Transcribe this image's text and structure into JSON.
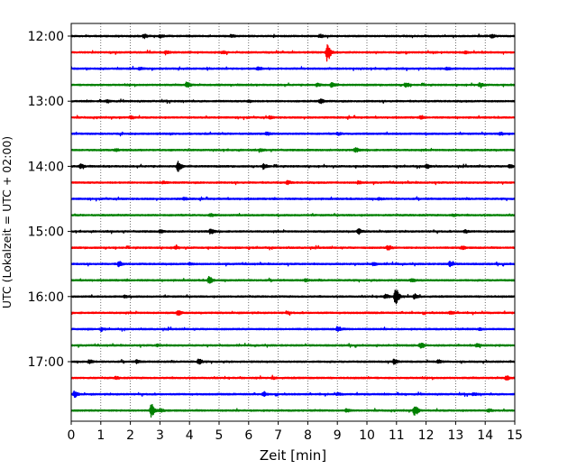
{
  "chart_data": {
    "type": "line",
    "xlabel": "Zeit  [min]",
    "ylabel": "UTC (Lokalzeit = UTC + 02:00)",
    "xlim": [
      0,
      15
    ],
    "x_ticks": [
      0,
      1,
      2,
      3,
      4,
      5,
      6,
      7,
      8,
      9,
      10,
      11,
      12,
      13,
      14,
      15
    ],
    "y_tick_labels": [
      "12:00",
      "13:00",
      "14:00",
      "15:00",
      "16:00",
      "17:00"
    ],
    "row_interval_minutes": 15,
    "vertical_grid": true,
    "trace_colors": [
      "#000000",
      "#ff0000",
      "#0000ff",
      "#008000"
    ],
    "rows": [
      {
        "start": "12:00",
        "color": "#000000",
        "events": [
          {
            "x": 2.45,
            "amp": 0.45
          },
          {
            "x": 3.0,
            "amp": 0.3
          },
          {
            "x": 5.4,
            "amp": 0.25
          },
          {
            "x": 8.4,
            "amp": 0.3
          },
          {
            "x": 14.2,
            "amp": 0.3
          }
        ]
      },
      {
        "start": "12:15",
        "color": "#ff0000",
        "events": [
          {
            "x": 8.65,
            "amp": 1.9
          },
          {
            "x": 5.1,
            "amp": 0.25
          },
          {
            "x": 3.2,
            "amp": 0.2
          },
          {
            "x": 13.3,
            "amp": 0.2
          }
        ]
      },
      {
        "start": "12:30",
        "color": "#0000ff",
        "events": [
          {
            "x": 6.3,
            "amp": 0.3
          },
          {
            "x": 2.3,
            "amp": 0.2
          },
          {
            "x": 12.7,
            "amp": 0.2
          }
        ]
      },
      {
        "start": "12:45",
        "color": "#008000",
        "events": [
          {
            "x": 3.9,
            "amp": 0.55
          },
          {
            "x": 8.8,
            "amp": 0.5
          },
          {
            "x": 11.3,
            "amp": 0.45
          },
          {
            "x": 13.8,
            "amp": 0.4
          },
          {
            "x": 8.3,
            "amp": 0.3
          }
        ]
      },
      {
        "start": "13:00",
        "color": "#000000",
        "events": [
          {
            "x": 8.4,
            "amp": 0.45
          },
          {
            "x": 6.0,
            "amp": 0.2
          },
          {
            "x": 1.2,
            "amp": 0.2
          }
        ]
      },
      {
        "start": "13:15",
        "color": "#ff0000",
        "events": [
          {
            "x": 2.0,
            "amp": 0.3
          },
          {
            "x": 6.7,
            "amp": 0.2
          },
          {
            "x": 11.8,
            "amp": 0.2
          }
        ]
      },
      {
        "start": "13:30",
        "color": "#0000ff",
        "events": [
          {
            "x": 6.6,
            "amp": 0.25
          },
          {
            "x": 9.0,
            "amp": 0.25
          },
          {
            "x": 14.5,
            "amp": 0.25
          }
        ]
      },
      {
        "start": "13:45",
        "color": "#008000",
        "events": [
          {
            "x": 9.6,
            "amp": 0.4
          },
          {
            "x": 1.5,
            "amp": 0.2
          },
          {
            "x": 6.4,
            "amp": 0.25
          }
        ]
      },
      {
        "start": "14:00",
        "color": "#000000",
        "events": [
          {
            "x": 3.6,
            "amp": 1.0
          },
          {
            "x": 0.3,
            "amp": 0.45
          },
          {
            "x": 6.5,
            "amp": 0.5
          },
          {
            "x": 12.0,
            "amp": 0.4
          },
          {
            "x": 14.8,
            "amp": 0.35
          }
        ]
      },
      {
        "start": "14:15",
        "color": "#ff0000",
        "events": [
          {
            "x": 7.3,
            "amp": 0.3
          },
          {
            "x": 9.7,
            "amp": 0.3
          },
          {
            "x": 3.1,
            "amp": 0.2
          }
        ]
      },
      {
        "start": "14:30",
        "color": "#0000ff",
        "events": [
          {
            "x": 3.8,
            "amp": 0.2
          },
          {
            "x": 10.4,
            "amp": 0.2
          }
        ]
      },
      {
        "start": "14:45",
        "color": "#008000",
        "events": [
          {
            "x": 4.7,
            "amp": 0.25
          },
          {
            "x": 12.9,
            "amp": 0.2
          }
        ]
      },
      {
        "start": "15:00",
        "color": "#000000",
        "events": [
          {
            "x": 4.7,
            "amp": 0.45
          },
          {
            "x": 9.7,
            "amp": 0.5
          },
          {
            "x": 13.3,
            "amp": 0.3
          },
          {
            "x": 3.0,
            "amp": 0.25
          }
        ]
      },
      {
        "start": "15:15",
        "color": "#ff0000",
        "events": [
          {
            "x": 10.7,
            "amp": 0.45
          },
          {
            "x": 3.5,
            "amp": 0.25
          },
          {
            "x": 13.2,
            "amp": 0.3
          }
        ]
      },
      {
        "start": "15:30",
        "color": "#0000ff",
        "events": [
          {
            "x": 1.6,
            "amp": 0.5
          },
          {
            "x": 12.8,
            "amp": 0.55
          },
          {
            "x": 4.0,
            "amp": 0.2
          },
          {
            "x": 10.2,
            "amp": 0.25
          }
        ]
      },
      {
        "start": "15:45",
        "color": "#008000",
        "events": [
          {
            "x": 4.65,
            "amp": 0.7
          },
          {
            "x": 11.5,
            "amp": 0.3
          },
          {
            "x": 7.9,
            "amp": 0.2
          }
        ]
      },
      {
        "start": "16:00",
        "color": "#000000",
        "events": [
          {
            "x": 10.95,
            "amp": 2.0
          },
          {
            "x": 11.6,
            "amp": 0.5
          },
          {
            "x": 10.6,
            "amp": 0.4
          },
          {
            "x": 1.8,
            "amp": 0.2
          }
        ]
      },
      {
        "start": "16:15",
        "color": "#ff0000",
        "events": [
          {
            "x": 3.6,
            "amp": 0.45
          },
          {
            "x": 12.8,
            "amp": 0.3
          },
          {
            "x": 7.3,
            "amp": 0.2
          }
        ]
      },
      {
        "start": "16:30",
        "color": "#0000ff",
        "events": [
          {
            "x": 9.0,
            "amp": 0.5
          },
          {
            "x": 1.0,
            "amp": 0.2
          },
          {
            "x": 13.8,
            "amp": 0.2
          }
        ]
      },
      {
        "start": "16:45",
        "color": "#008000",
        "events": [
          {
            "x": 11.8,
            "amp": 0.45
          },
          {
            "x": 2.9,
            "amp": 0.2
          },
          {
            "x": 13.7,
            "amp": 0.3
          }
        ]
      },
      {
        "start": "17:00",
        "color": "#000000",
        "events": [
          {
            "x": 4.3,
            "amp": 0.55
          },
          {
            "x": 10.9,
            "amp": 0.45
          },
          {
            "x": 2.2,
            "amp": 0.3
          },
          {
            "x": 0.6,
            "amp": 0.3
          },
          {
            "x": 12.4,
            "amp": 0.3
          }
        ]
      },
      {
        "start": "17:15",
        "color": "#ff0000",
        "events": [
          {
            "x": 14.7,
            "amp": 0.4
          },
          {
            "x": 1.5,
            "amp": 0.2
          },
          {
            "x": 6.8,
            "amp": 0.2
          }
        ]
      },
      {
        "start": "17:30",
        "color": "#0000ff",
        "events": [
          {
            "x": 0.1,
            "amp": 0.6
          },
          {
            "x": 6.5,
            "amp": 0.4
          },
          {
            "x": 9.0,
            "amp": 0.2
          },
          {
            "x": 13.6,
            "amp": 0.2
          }
        ]
      },
      {
        "start": "17:45",
        "color": "#008000",
        "events": [
          {
            "x": 2.7,
            "amp": 1.3
          },
          {
            "x": 11.6,
            "amp": 1.1
          },
          {
            "x": 3.0,
            "amp": 0.3
          },
          {
            "x": 9.3,
            "amp": 0.3
          },
          {
            "x": 14.1,
            "amp": 0.25
          }
        ]
      }
    ]
  }
}
